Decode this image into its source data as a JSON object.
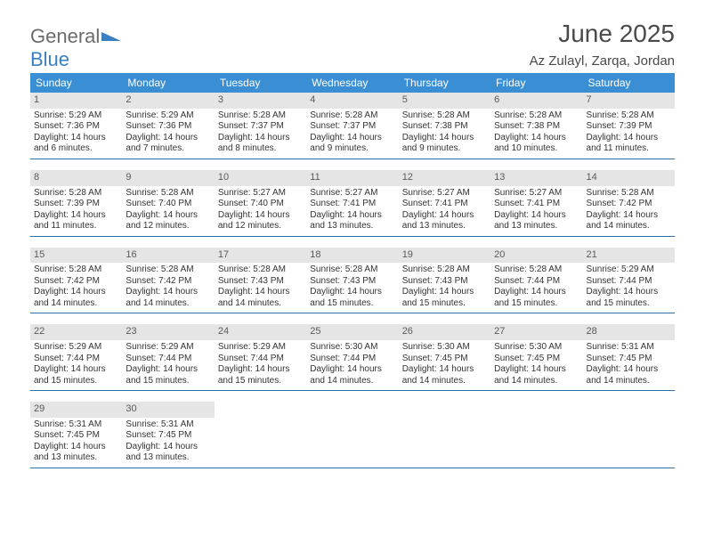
{
  "logo": {
    "part1": "General",
    "part2": "Blue"
  },
  "title": "June 2025",
  "location": "Az Zulayl, Zarqa, Jordan",
  "colors": {
    "header_bg": "#3a8fd4",
    "header_text": "#ffffff",
    "daynum_bg": "#e5e5e5",
    "body_text": "#333333",
    "rule": "#2f6ea8",
    "logo_gray": "#6b6b6b",
    "logo_blue": "#3a7fc4"
  },
  "typography": {
    "title_fontsize": 28,
    "location_fontsize": 15,
    "header_fontsize": 12,
    "daynum_fontsize": 11,
    "body_fontsize": 10
  },
  "dayHeaders": [
    "Sunday",
    "Monday",
    "Tuesday",
    "Wednesday",
    "Thursday",
    "Friday",
    "Saturday"
  ],
  "weeks": [
    [
      {
        "n": "1",
        "sr": "5:29 AM",
        "ss": "7:36 PM",
        "dl": "14 hours and 6 minutes."
      },
      {
        "n": "2",
        "sr": "5:29 AM",
        "ss": "7:36 PM",
        "dl": "14 hours and 7 minutes."
      },
      {
        "n": "3",
        "sr": "5:28 AM",
        "ss": "7:37 PM",
        "dl": "14 hours and 8 minutes."
      },
      {
        "n": "4",
        "sr": "5:28 AM",
        "ss": "7:37 PM",
        "dl": "14 hours and 9 minutes."
      },
      {
        "n": "5",
        "sr": "5:28 AM",
        "ss": "7:38 PM",
        "dl": "14 hours and 9 minutes."
      },
      {
        "n": "6",
        "sr": "5:28 AM",
        "ss": "7:38 PM",
        "dl": "14 hours and 10 minutes."
      },
      {
        "n": "7",
        "sr": "5:28 AM",
        "ss": "7:39 PM",
        "dl": "14 hours and 11 minutes."
      }
    ],
    [
      {
        "n": "8",
        "sr": "5:28 AM",
        "ss": "7:39 PM",
        "dl": "14 hours and 11 minutes."
      },
      {
        "n": "9",
        "sr": "5:28 AM",
        "ss": "7:40 PM",
        "dl": "14 hours and 12 minutes."
      },
      {
        "n": "10",
        "sr": "5:27 AM",
        "ss": "7:40 PM",
        "dl": "14 hours and 12 minutes."
      },
      {
        "n": "11",
        "sr": "5:27 AM",
        "ss": "7:41 PM",
        "dl": "14 hours and 13 minutes."
      },
      {
        "n": "12",
        "sr": "5:27 AM",
        "ss": "7:41 PM",
        "dl": "14 hours and 13 minutes."
      },
      {
        "n": "13",
        "sr": "5:27 AM",
        "ss": "7:41 PM",
        "dl": "14 hours and 13 minutes."
      },
      {
        "n": "14",
        "sr": "5:28 AM",
        "ss": "7:42 PM",
        "dl": "14 hours and 14 minutes."
      }
    ],
    [
      {
        "n": "15",
        "sr": "5:28 AM",
        "ss": "7:42 PM",
        "dl": "14 hours and 14 minutes."
      },
      {
        "n": "16",
        "sr": "5:28 AM",
        "ss": "7:42 PM",
        "dl": "14 hours and 14 minutes."
      },
      {
        "n": "17",
        "sr": "5:28 AM",
        "ss": "7:43 PM",
        "dl": "14 hours and 14 minutes."
      },
      {
        "n": "18",
        "sr": "5:28 AM",
        "ss": "7:43 PM",
        "dl": "14 hours and 15 minutes."
      },
      {
        "n": "19",
        "sr": "5:28 AM",
        "ss": "7:43 PM",
        "dl": "14 hours and 15 minutes."
      },
      {
        "n": "20",
        "sr": "5:28 AM",
        "ss": "7:44 PM",
        "dl": "14 hours and 15 minutes."
      },
      {
        "n": "21",
        "sr": "5:29 AM",
        "ss": "7:44 PM",
        "dl": "14 hours and 15 minutes."
      }
    ],
    [
      {
        "n": "22",
        "sr": "5:29 AM",
        "ss": "7:44 PM",
        "dl": "14 hours and 15 minutes."
      },
      {
        "n": "23",
        "sr": "5:29 AM",
        "ss": "7:44 PM",
        "dl": "14 hours and 15 minutes."
      },
      {
        "n": "24",
        "sr": "5:29 AM",
        "ss": "7:44 PM",
        "dl": "14 hours and 15 minutes."
      },
      {
        "n": "25",
        "sr": "5:30 AM",
        "ss": "7:44 PM",
        "dl": "14 hours and 14 minutes."
      },
      {
        "n": "26",
        "sr": "5:30 AM",
        "ss": "7:45 PM",
        "dl": "14 hours and 14 minutes."
      },
      {
        "n": "27",
        "sr": "5:30 AM",
        "ss": "7:45 PM",
        "dl": "14 hours and 14 minutes."
      },
      {
        "n": "28",
        "sr": "5:31 AM",
        "ss": "7:45 PM",
        "dl": "14 hours and 14 minutes."
      }
    ],
    [
      {
        "n": "29",
        "sr": "5:31 AM",
        "ss": "7:45 PM",
        "dl": "14 hours and 13 minutes."
      },
      {
        "n": "30",
        "sr": "5:31 AM",
        "ss": "7:45 PM",
        "dl": "14 hours and 13 minutes."
      },
      {
        "empty": true
      },
      {
        "empty": true
      },
      {
        "empty": true
      },
      {
        "empty": true
      },
      {
        "empty": true
      }
    ]
  ],
  "labels": {
    "sunrise": "Sunrise: ",
    "sunset": "Sunset: ",
    "daylight": "Daylight: "
  }
}
